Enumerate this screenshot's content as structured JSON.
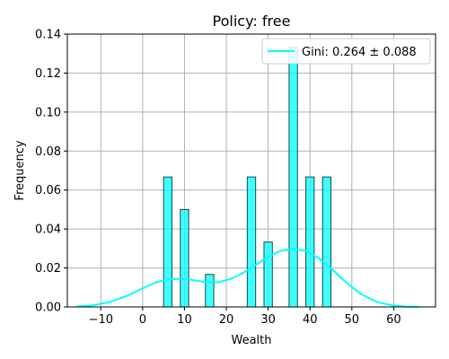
{
  "chart_data": {
    "type": "bar",
    "title": "Policy: free",
    "xlabel": "Wealth",
    "ylabel": "Frequency",
    "xlim": [
      -18,
      70
    ],
    "ylim": [
      0,
      0.14
    ],
    "x_ticks": [
      -10,
      0,
      10,
      20,
      30,
      40,
      50,
      60
    ],
    "y_ticks": [
      0.0,
      0.02,
      0.04,
      0.06,
      0.08,
      0.1,
      0.12,
      0.14
    ],
    "grid": true,
    "legend_position": "top-right",
    "bar_color": "#00ffff",
    "bar_edge_color": "#1a4a4a",
    "bars": [
      {
        "x": 6.0,
        "value": 0.0667
      },
      {
        "x": 10.0,
        "value": 0.05
      },
      {
        "x": 16.0,
        "value": 0.0167
      },
      {
        "x": 26.0,
        "value": 0.0667
      },
      {
        "x": 30.0,
        "value": 0.0333
      },
      {
        "x": 36.0,
        "value": 0.1333
      },
      {
        "x": 40.0,
        "value": 0.0667
      },
      {
        "x": 44.0,
        "value": 0.0667
      }
    ],
    "bar_width": 2.0,
    "kde": {
      "name": "Gini: 0.264 ± 0.088",
      "color": "#00ffff",
      "x": [
        -16,
        -12,
        -8,
        -4,
        0,
        3,
        6,
        9,
        12,
        15,
        18,
        21,
        24,
        27,
        30,
        33,
        36,
        39,
        42,
        45,
        48,
        52,
        56,
        60,
        63,
        66
      ],
      "y": [
        0.0002,
        0.0008,
        0.0025,
        0.0055,
        0.0095,
        0.0125,
        0.0142,
        0.0145,
        0.0138,
        0.0127,
        0.0126,
        0.0143,
        0.0175,
        0.0215,
        0.0258,
        0.0288,
        0.0299,
        0.0287,
        0.0252,
        0.0198,
        0.0138,
        0.0068,
        0.0025,
        0.0007,
        0.0002,
        5e-05
      ]
    }
  }
}
